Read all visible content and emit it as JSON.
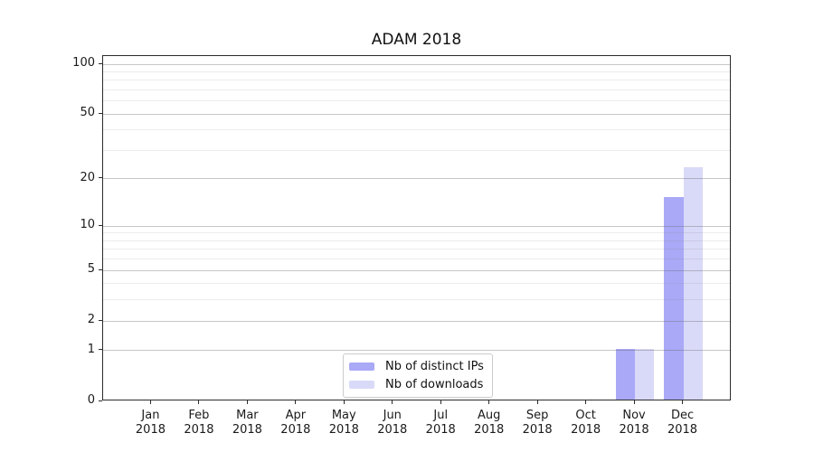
{
  "figure": {
    "title": "ADAM 2018",
    "background": "#ffffff"
  },
  "colors": {
    "distinct_ips": "#a9a9f7",
    "downloads": "#d9d9f8",
    "major_grid": "#c4c4c4",
    "minor_grid": "#ebebeb",
    "spine": "#2b2b2b",
    "text": "#1a1a1a"
  },
  "chart_data": {
    "type": "bar",
    "title": "ADAM 2018",
    "xlabel": "",
    "ylabel": "",
    "categories": [
      "Jan 2018",
      "Feb 2018",
      "Mar 2018",
      "Apr 2018",
      "May 2018",
      "Jun 2018",
      "Jul 2018",
      "Aug 2018",
      "Sep 2018",
      "Oct 2018",
      "Nov 2018",
      "Dec 2018"
    ],
    "x_tick_months": [
      "Jan",
      "Feb",
      "Mar",
      "Apr",
      "May",
      "Jun",
      "Jul",
      "Aug",
      "Sep",
      "Oct",
      "Nov",
      "Dec"
    ],
    "x_tick_year": "2018",
    "series": [
      {
        "name": "Nb of distinct IPs",
        "color": "#a9a9f7",
        "values": [
          0,
          0,
          0,
          0,
          0,
          0,
          0,
          0,
          0,
          0,
          1,
          15
        ]
      },
      {
        "name": "Nb of downloads",
        "color": "#d9d9f8",
        "values": [
          0,
          0,
          0,
          0,
          0,
          0,
          0,
          0,
          0,
          0,
          1,
          23
        ]
      }
    ],
    "yscale": "log1p",
    "ylim": [
      0,
      112
    ],
    "y_major_ticks": [
      100,
      50,
      20,
      10,
      5,
      2,
      1,
      0
    ],
    "y_minor_ticks": [
      3,
      4,
      6,
      7,
      8,
      9,
      30,
      40,
      60,
      70,
      80,
      90
    ],
    "grid": true,
    "legend_position": "lower center"
  }
}
